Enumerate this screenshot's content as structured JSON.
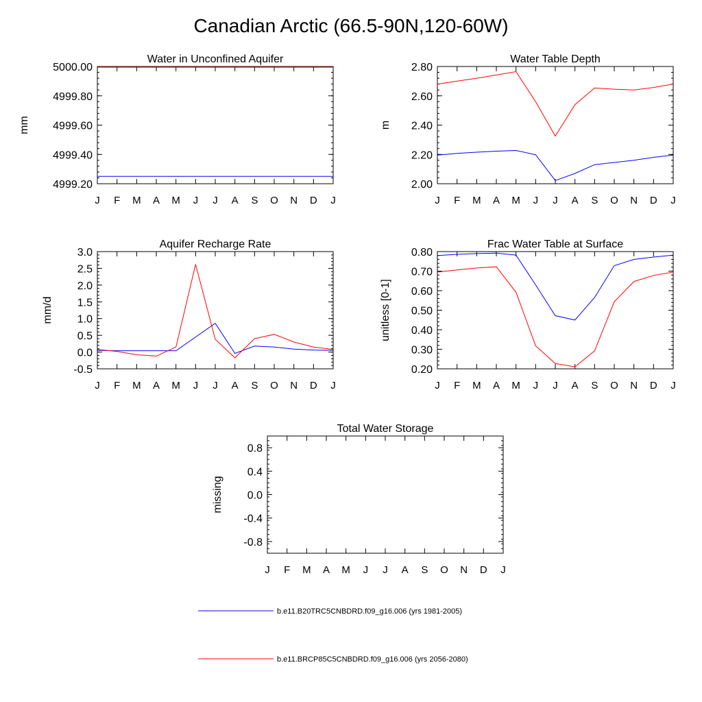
{
  "figure_title": "Canadian Arctic (66.5-90N,120-60W)",
  "months": [
    "J",
    "F",
    "M",
    "A",
    "M",
    "J",
    "J",
    "A",
    "S",
    "O",
    "N",
    "D",
    "J"
  ],
  "colors": {
    "series1": "#0000ff",
    "series2": "#ff0000"
  },
  "legend": [
    {
      "label": "b.e11.B20TRC5CNBDRD.f09_g16.006 (yrs 1981-2005)",
      "color": "#0000ff"
    },
    {
      "label": "b.e11.BRCP85C5CNBDRD.f09_g16.006 (yrs 2056-2080)",
      "color": "#ff0000"
    }
  ],
  "chart_data": [
    {
      "id": "unconfined-aquifer",
      "type": "line",
      "title": "Water in Unconfined Aquifer",
      "ylabel": "mm",
      "xlabel": "",
      "ylim": [
        4999.2,
        5000.0
      ],
      "yticks": [
        4999.2,
        4999.4,
        4999.6,
        4999.8,
        5000.0
      ],
      "ytick_labels": [
        "4999.20",
        "4999.40",
        "4999.60",
        "4999.80",
        "5000.00"
      ],
      "series": [
        {
          "name": "b.e11.B20TRC5CNBDRD.f09_g16.006 (yrs 1981-2005)",
          "color": "#0000ff",
          "values": [
            4999.25,
            4999.25,
            4999.25,
            4999.25,
            4999.25,
            4999.25,
            4999.25,
            4999.25,
            4999.25,
            4999.25,
            4999.25,
            4999.25,
            4999.25
          ]
        },
        {
          "name": "b.e11.BRCP85C5CNBDRD.f09_g16.006 (yrs 2056-2080)",
          "color": "#ff0000",
          "values": [
            4999.995,
            4999.995,
            4999.995,
            4999.995,
            4999.995,
            4999.995,
            4999.995,
            4999.995,
            4999.995,
            4999.995,
            4999.995,
            4999.995,
            4999.995
          ]
        }
      ]
    },
    {
      "id": "water-table-depth",
      "type": "line",
      "title": "Water Table Depth",
      "ylabel": "m",
      "xlabel": "",
      "ylim": [
        2.0,
        2.8
      ],
      "yticks": [
        2.0,
        2.2,
        2.4,
        2.6,
        2.8
      ],
      "ytick_labels": [
        "2.00",
        "2.20",
        "2.40",
        "2.60",
        "2.80"
      ],
      "series": [
        {
          "name": "b.e11.B20TRC5CNBDRD.f09_g16.006 (yrs 1981-2005)",
          "color": "#0000ff",
          "values": [
            2.195,
            2.207,
            2.215,
            2.222,
            2.227,
            2.198,
            2.022,
            2.07,
            2.13,
            2.145,
            2.16,
            2.18,
            2.195
          ]
        },
        {
          "name": "b.e11.BRCP85C5CNBDRD.f09_g16.006 (yrs 2056-2080)",
          "color": "#ff0000",
          "values": [
            2.68,
            2.7,
            2.72,
            2.742,
            2.765,
            2.56,
            2.325,
            2.54,
            2.653,
            2.645,
            2.64,
            2.657,
            2.68
          ]
        }
      ]
    },
    {
      "id": "recharge-rate",
      "type": "line",
      "title": "Aquifer Recharge Rate",
      "ylabel": "mm/d",
      "xlabel": "",
      "ylim": [
        -0.5,
        3.0
      ],
      "yticks": [
        -0.5,
        0.0,
        0.5,
        1.0,
        1.5,
        2.0,
        2.5,
        3.0
      ],
      "ytick_labels": [
        "-0.5",
        "0.0",
        "0.5",
        "1.0",
        "1.5",
        "2.0",
        "2.5",
        "3.0"
      ],
      "series": [
        {
          "name": "b.e11.B20TRC5CNBDRD.f09_g16.006 (yrs 1981-2005)",
          "color": "#0000ff",
          "values": [
            0.05,
            0.04,
            0.04,
            0.04,
            0.04,
            0.45,
            0.86,
            -0.04,
            0.18,
            0.15,
            0.09,
            0.06,
            0.05
          ]
        },
        {
          "name": "b.e11.BRCP85C5CNBDRD.f09_g16.006 (yrs 2056-2080)",
          "color": "#ff0000",
          "values": [
            0.08,
            0.02,
            -0.08,
            -0.12,
            0.15,
            2.62,
            0.38,
            -0.17,
            0.4,
            0.53,
            0.3,
            0.15,
            0.08
          ]
        }
      ]
    },
    {
      "id": "frac-water-table",
      "type": "line",
      "title": "Frac Water Table at Surface",
      "ylabel": "unitless [0-1]",
      "xlabel": "",
      "ylim": [
        0.2,
        0.8
      ],
      "yticks": [
        0.2,
        0.3,
        0.4,
        0.5,
        0.6,
        0.7,
        0.8
      ],
      "ytick_labels": [
        "0.20",
        "0.30",
        "0.40",
        "0.50",
        "0.60",
        "0.70",
        "0.80"
      ],
      "series": [
        {
          "name": "b.e11.B20TRC5CNBDRD.f09_g16.006 (yrs 1981-2005)",
          "color": "#0000ff",
          "values": [
            0.78,
            0.786,
            0.79,
            0.792,
            0.782,
            0.63,
            0.472,
            0.45,
            0.565,
            0.728,
            0.76,
            0.772,
            0.782
          ]
        },
        {
          "name": "b.e11.BRCP85C5CNBDRD.f09_g16.006 (yrs 2056-2080)",
          "color": "#ff0000",
          "values": [
            0.695,
            0.706,
            0.716,
            0.722,
            0.592,
            0.318,
            0.227,
            0.21,
            0.292,
            0.543,
            0.647,
            0.678,
            0.695
          ]
        }
      ]
    },
    {
      "id": "total-water-storage",
      "type": "line",
      "title": "Total Water Storage",
      "ylabel": "missing",
      "xlabel": "",
      "ylim": [
        -1.0,
        1.0
      ],
      "yticks": [
        -0.8,
        -0.4,
        0.0,
        0.4,
        0.8
      ],
      "ytick_labels": [
        "-0.8",
        "-0.4",
        "0.0",
        "0.4",
        "0.8"
      ],
      "series": []
    }
  ]
}
